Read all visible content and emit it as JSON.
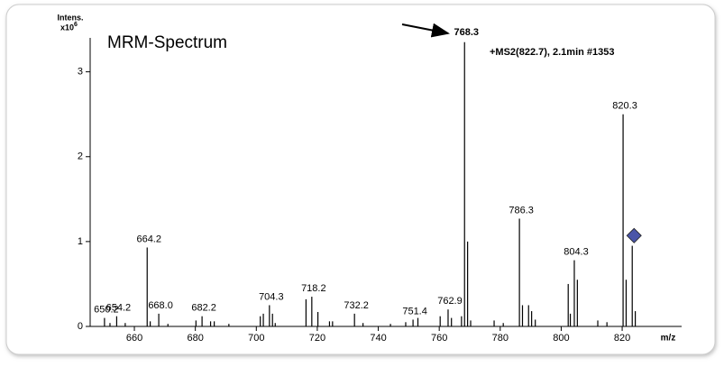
{
  "chart_data": {
    "type": "stick",
    "title": "MRM-Spectrum",
    "subtitle": "+MS2(822.7), 2.1min #1353",
    "y_label": "Intens.",
    "y_scale_label": "x10",
    "y_scale_exponent": "6",
    "x_label": "m/z",
    "color": "#000000",
    "xlim": [
      645.5,
      839.5
    ],
    "ylim": [
      0,
      3.4
    ],
    "xticks": [
      660,
      680,
      700,
      720,
      740,
      760,
      780,
      800,
      820
    ],
    "yticks": [
      0,
      1,
      2,
      3
    ],
    "x": [
      650.2,
      652,
      654.2,
      657,
      664.2,
      665.2,
      668.0,
      671,
      680.2,
      682.2,
      685,
      686.2,
      691,
      701.3,
      702.3,
      704.3,
      705.3,
      706.2,
      716.3,
      718.2,
      720.2,
      724,
      725,
      732.2,
      735,
      744,
      749,
      751.4,
      753,
      760.3,
      762.9,
      764,
      767.3,
      768.3,
      769.3,
      770.3,
      778,
      781,
      786.3,
      787.3,
      789.3,
      790.3,
      791.5,
      802.3,
      803,
      804.3,
      805.3,
      812,
      815,
      820.3,
      821.3,
      823.3,
      824.3
    ],
    "values": [
      0.1,
      0.04,
      0.12,
      0.04,
      0.93,
      0.06,
      0.15,
      0.03,
      0.07,
      0.12,
      0.06,
      0.06,
      0.03,
      0.12,
      0.15,
      0.25,
      0.15,
      0.04,
      0.32,
      0.35,
      0.17,
      0.06,
      0.06,
      0.15,
      0.04,
      0.03,
      0.05,
      0.08,
      0.1,
      0.12,
      0.2,
      0.1,
      0.12,
      3.35,
      1.0,
      0.07,
      0.07,
      0.04,
      1.27,
      0.25,
      0.25,
      0.18,
      0.08,
      0.5,
      0.15,
      0.78,
      0.55,
      0.07,
      0.05,
      2.5,
      0.55,
      0.95,
      0.18
    ],
    "x_labels": [
      "650.2",
      null,
      "654.2",
      null,
      "664.2",
      null,
      "668.0",
      null,
      null,
      "682.2",
      null,
      null,
      null,
      null,
      null,
      "704.3",
      null,
      null,
      null,
      "718.2",
      null,
      null,
      null,
      "732.2",
      null,
      null,
      null,
      "751.4",
      null,
      null,
      "762.9",
      null,
      null,
      "768.3",
      null,
      null,
      null,
      null,
      "786.3",
      null,
      null,
      null,
      null,
      null,
      null,
      "804.3",
      null,
      null,
      null,
      "820.3",
      null,
      null,
      null
    ],
    "highlight_label": "768.3",
    "precursor": {
      "x": 823.9,
      "y": 1.07,
      "color": "#4a55a8"
    }
  }
}
